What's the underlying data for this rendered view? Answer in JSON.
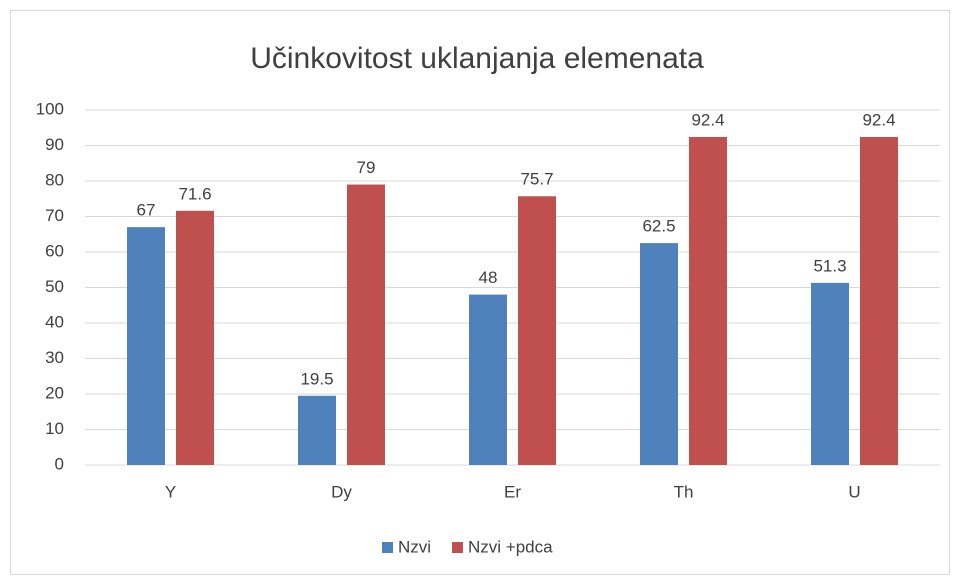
{
  "chart_data": {
    "type": "bar",
    "title": "Učinkovitost uklanjanja elemenata",
    "categories": [
      "Y",
      "Dy",
      "Er",
      "Th",
      "U"
    ],
    "series": [
      {
        "name": "Nzvi",
        "color": "#4f81bd",
        "values": [
          67,
          19.5,
          48,
          62.5,
          51.3
        ]
      },
      {
        "name": "Nzvi +pdca",
        "color": "#c0504d",
        "values": [
          71.6,
          79,
          75.7,
          92.4,
          92.4
        ]
      }
    ],
    "ylim": [
      0,
      100
    ],
    "yticks": [
      0,
      10,
      20,
      30,
      40,
      50,
      60,
      70,
      80,
      90,
      100
    ],
    "grid": true,
    "legend": "bottom"
  }
}
